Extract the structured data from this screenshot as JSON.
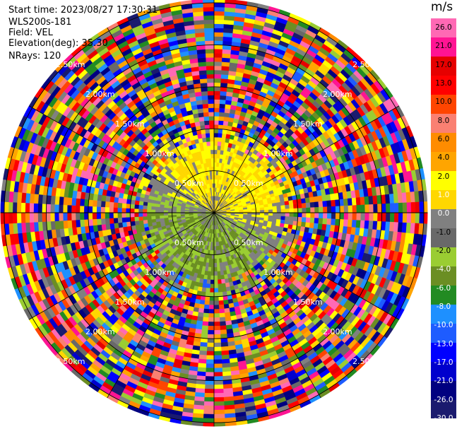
{
  "info": {
    "start_time": "Start time: 2023/08/27 17:30:31",
    "instrument": "WLS200s-181",
    "field": "Field: VEL",
    "elevation": "Elevation(deg): 35.30",
    "nrays": "NRays: 120"
  },
  "chart_data": {
    "type": "heatmap",
    "projection": "polar-ppi",
    "field": "VEL",
    "units": "m/s",
    "nrays": 120,
    "range_rings_km": [
      0.5,
      1.0,
      1.5,
      2.0,
      2.5
    ],
    "range_ring_labels": [
      "0.50km",
      "1.00km",
      "1.50km",
      "2.00km",
      "2.50km"
    ],
    "colorbar": {
      "colors": [
        "#1a1a6e",
        "#000080",
        "#0000cd",
        "#0000ff",
        "#1e5cff",
        "#1e90ff",
        "#228b22",
        "#6b8e23",
        "#9acd32",
        "#696969",
        "#808080",
        "#ffd700",
        "#ffff00",
        "#ffa500",
        "#ff8c00",
        "#fa8072",
        "#ff4500",
        "#ff0000",
        "#e60000",
        "#ff1493",
        "#ff69b4"
      ],
      "tick_labels": [
        "26.0",
        "21.0",
        "17.0",
        "13.0",
        "10.0",
        "8.0",
        "6.0",
        "4.0",
        "2.0",
        "1.0",
        "0.0",
        "-1.0",
        "-2.0",
        "-4.0",
        "-6.0",
        "-8.0",
        "-10.0",
        "-13.0",
        "-17.0",
        "-21.0",
        "-26.0",
        "-30.0"
      ]
    }
  }
}
